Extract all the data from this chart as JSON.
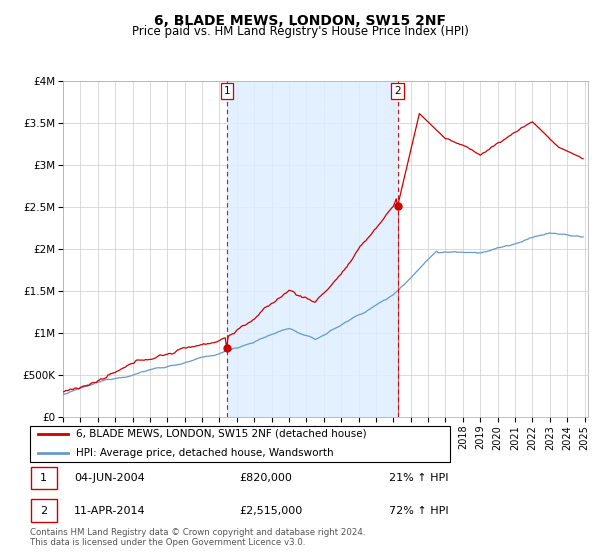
{
  "title": "6, BLADE MEWS, LONDON, SW15 2NF",
  "subtitle": "Price paid vs. HM Land Registry's House Price Index (HPI)",
  "ytick_labels": [
    "£0",
    "£500K",
    "£1M",
    "£1.5M",
    "£2M",
    "£2.5M",
    "£3M",
    "£3.5M",
    "£4M"
  ],
  "yticks": [
    0,
    500000,
    1000000,
    1500000,
    2000000,
    2500000,
    3000000,
    3500000,
    4000000
  ],
  "legend_line1": "6, BLADE MEWS, LONDON, SW15 2NF (detached house)",
  "legend_line2": "HPI: Average price, detached house, Wandsworth",
  "sale1_date": "04-JUN-2004",
  "sale1_price": 820000,
  "sale1_year": 2004.42,
  "sale2_date": "11-APR-2014",
  "sale2_price": 2515000,
  "sale2_year": 2014.25,
  "sale1_hpi": "21% ↑ HPI",
  "sale2_hpi": "72% ↑ HPI",
  "footnote1": "Contains HM Land Registry data © Crown copyright and database right 2024.",
  "footnote2": "This data is licensed under the Open Government Licence v3.0.",
  "red_color": "#cc0000",
  "blue_color": "#6699cc",
  "bg_fill_color": "#ddeeff",
  "grid_color": "#cccccc",
  "xmin": 1995,
  "xmax": 2025,
  "ymin": 0,
  "ymax": 4000000
}
